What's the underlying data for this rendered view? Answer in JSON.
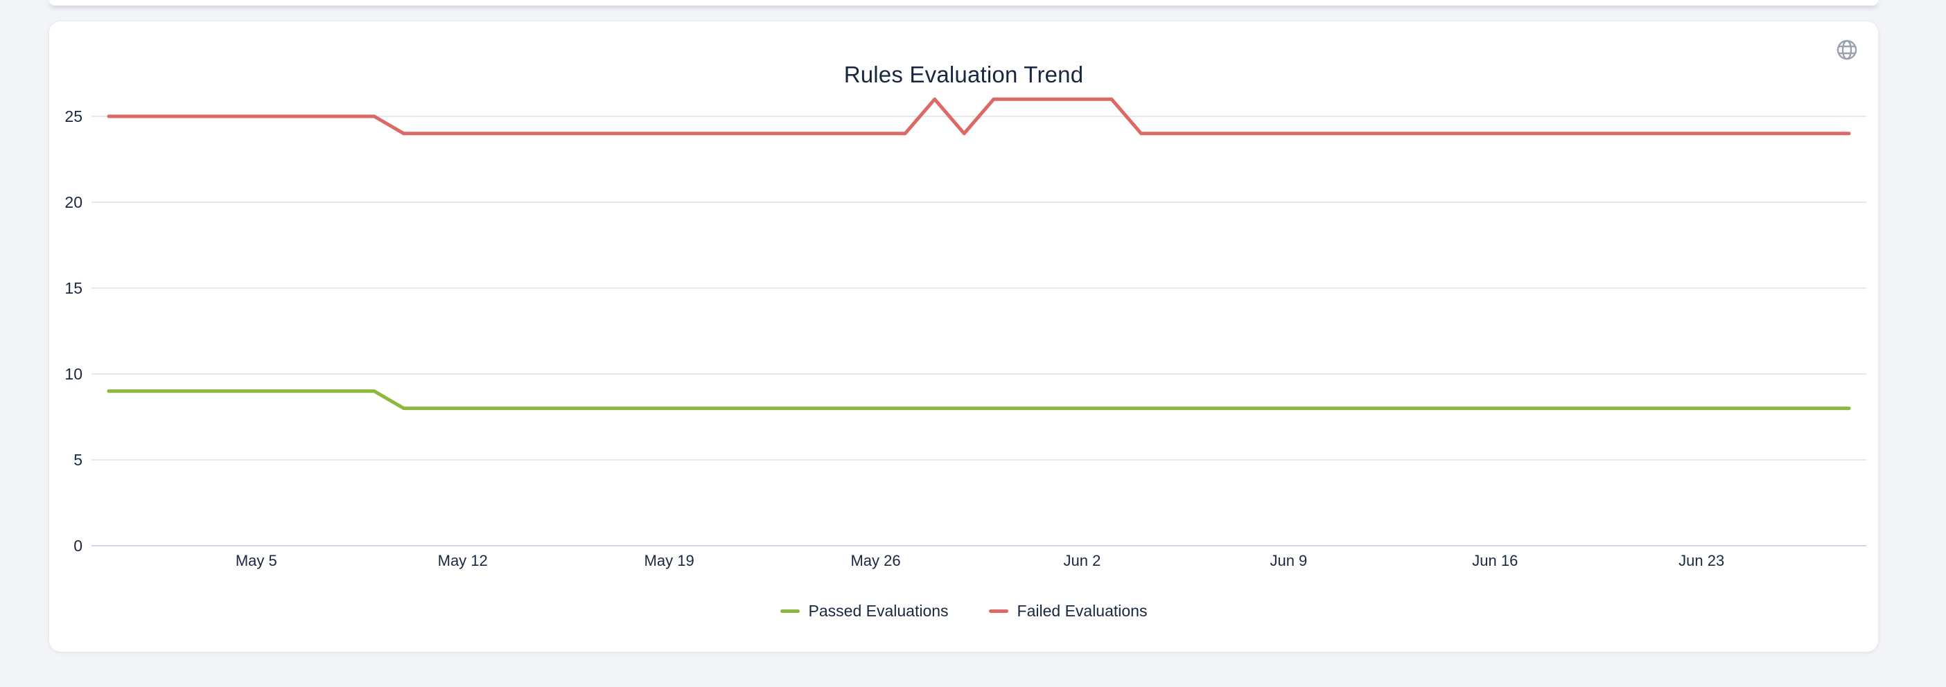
{
  "card": {
    "title": "Rules Evaluation Trend"
  },
  "icons": {
    "top_right": "globe"
  },
  "colors": {
    "passed_line": "#8cb83f",
    "failed_line": "#dc6966",
    "gridline": "#e7e7e7",
    "axis_line": "#ccd6eb",
    "text": "#182740",
    "icon_gray": "#9aa1ac",
    "card_bg": "#ffffff",
    "page_bg": "#f2f4f7"
  },
  "chart_data": {
    "type": "line",
    "title": "Rules Evaluation Trend",
    "xlabel": "",
    "ylabel": "",
    "grid": true,
    "legend_position": "bottom",
    "num_points": 60,
    "ylim": [
      0,
      25
    ],
    "y_ticks": [
      0,
      5,
      10,
      15,
      20,
      25
    ],
    "x_ticks": [
      {
        "i": 5,
        "label": "May 5"
      },
      {
        "i": 12,
        "label": "May 12"
      },
      {
        "i": 19,
        "label": "May 19"
      },
      {
        "i": 26,
        "label": "May 26"
      },
      {
        "i": 33,
        "label": "Jun 2"
      },
      {
        "i": 40,
        "label": "Jun 9"
      },
      {
        "i": 47,
        "label": "Jun 16"
      },
      {
        "i": 54,
        "label": "Jun 23"
      }
    ],
    "series": [
      {
        "name": "Passed Evaluations",
        "color": "#8cb83f",
        "values": [
          9,
          9,
          9,
          9,
          9,
          9,
          9,
          9,
          9,
          9,
          8,
          8,
          8,
          8,
          8,
          8,
          8,
          8,
          8,
          8,
          8,
          8,
          8,
          8,
          8,
          8,
          8,
          8,
          8,
          8,
          8,
          8,
          8,
          8,
          8,
          8,
          8,
          8,
          8,
          8,
          8,
          8,
          8,
          8,
          8,
          8,
          8,
          8,
          8,
          8,
          8,
          8,
          8,
          8,
          8,
          8,
          8,
          8,
          8,
          8
        ]
      },
      {
        "name": "Failed Evaluations",
        "color": "#dc6966",
        "values": [
          25,
          25,
          25,
          25,
          25,
          25,
          25,
          25,
          25,
          25,
          24,
          24,
          24,
          24,
          24,
          24,
          24,
          24,
          24,
          24,
          24,
          24,
          24,
          24,
          24,
          24,
          24,
          24,
          26,
          24,
          26,
          26,
          26,
          26,
          26,
          24,
          24,
          24,
          24,
          24,
          24,
          24,
          24,
          24,
          24,
          24,
          24,
          24,
          24,
          24,
          24,
          24,
          24,
          24,
          24,
          24,
          24,
          24,
          24,
          24
        ]
      }
    ]
  }
}
